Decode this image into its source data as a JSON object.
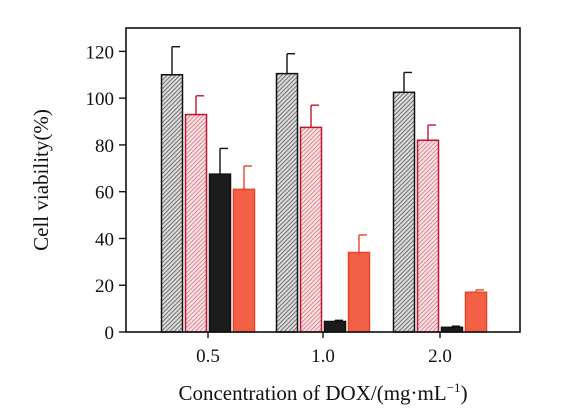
{
  "chart_data": {
    "type": "bar",
    "xlabel": "Concentration of DOX/(mg·mL",
    "xlabel_sup": "−1",
    "xlabel_end": ")",
    "ylabel": "Cell viability(%)",
    "ylim": [
      0,
      130
    ],
    "yticks": [
      0,
      20,
      40,
      60,
      80,
      100,
      120
    ],
    "categories": [
      "0.5",
      "1.0",
      "2.0"
    ],
    "grid": false,
    "legend": "none",
    "series": [
      {
        "values": [
          110,
          110.5,
          102.5
        ],
        "errors": [
          12,
          8.5,
          8.5
        ],
        "style": "hatched",
        "edge": "#111111",
        "fill": "#b8b8b8"
      },
      {
        "values": [
          93,
          87.5,
          82
        ],
        "errors": [
          8,
          9.5,
          6.5
        ],
        "style": "hatched",
        "edge": "#c0142a",
        "fill": "#f0b7c0"
      },
      {
        "values": [
          67.5,
          4.5,
          2
        ],
        "errors": [
          11,
          0.5,
          0.5
        ],
        "style": "solid",
        "edge": "#111111",
        "fill": "#1c1c1c"
      },
      {
        "values": [
          61,
          34,
          17
        ],
        "errors": [
          10,
          7.5,
          1
        ],
        "style": "solid",
        "edge": "#e8442a",
        "fill": "#f26046"
      }
    ]
  }
}
